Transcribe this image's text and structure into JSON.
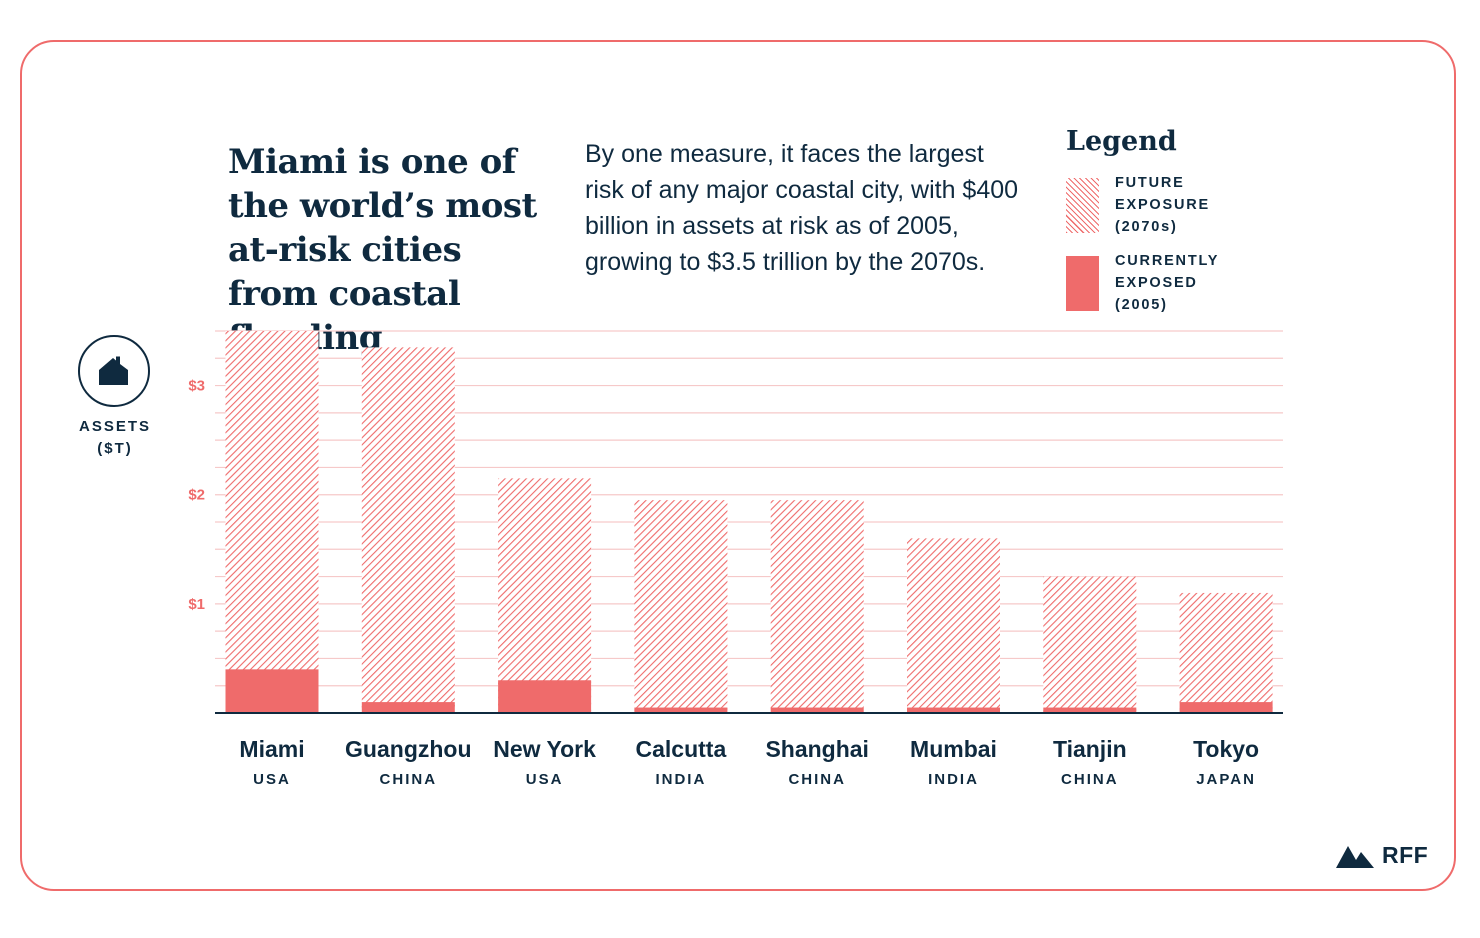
{
  "headline": "Miami is one of the world’s most at-risk cities from coastal flooding",
  "subtext": "By one measure, it faces the largest risk of any major coastal city, with $400 billion in assets at risk as of 2005, growing to $3.5 trillion by the 2070s.",
  "legend": {
    "title": "Legend",
    "future": {
      "lines": [
        "FUTURE",
        "EXPOSURE",
        "(2070s)"
      ]
    },
    "current": {
      "lines": [
        "CURRENTLY",
        "EXPOSED",
        "(2005)"
      ]
    }
  },
  "axis": {
    "label_lines": [
      "ASSETS",
      "($T)"
    ],
    "icon": "house-icon"
  },
  "brand": {
    "logo_text": "RFF",
    "icon": "mountain-logo-icon"
  },
  "colors": {
    "accent": "#ef6b6b",
    "text": "#0f2a3f",
    "grid": "#f6c9c9"
  },
  "chart_data": {
    "type": "bar",
    "stacking": "overlay",
    "ylabel": "ASSETS ($T)",
    "ylim": [
      0,
      3.5
    ],
    "yticks": [
      1,
      2,
      3
    ],
    "ytick_labels": [
      "$1",
      "$2",
      "$3"
    ],
    "grid": true,
    "categories": [
      "Miami",
      "Guangzhou",
      "New York",
      "Calcutta",
      "Shanghai",
      "Mumbai",
      "Tianjin",
      "Tokyo"
    ],
    "countries": [
      "USA",
      "CHINA",
      "USA",
      "INDIA",
      "CHINA",
      "INDIA",
      "CHINA",
      "JAPAN"
    ],
    "series": [
      {
        "name": "FUTURE EXPOSURE (2070s)",
        "values": [
          3.5,
          3.35,
          2.15,
          1.95,
          1.95,
          1.6,
          1.25,
          1.1
        ]
      },
      {
        "name": "CURRENTLY EXPOSED (2005)",
        "values": [
          0.4,
          0.1,
          0.3,
          0.05,
          0.05,
          0.05,
          0.05,
          0.1
        ]
      }
    ]
  }
}
